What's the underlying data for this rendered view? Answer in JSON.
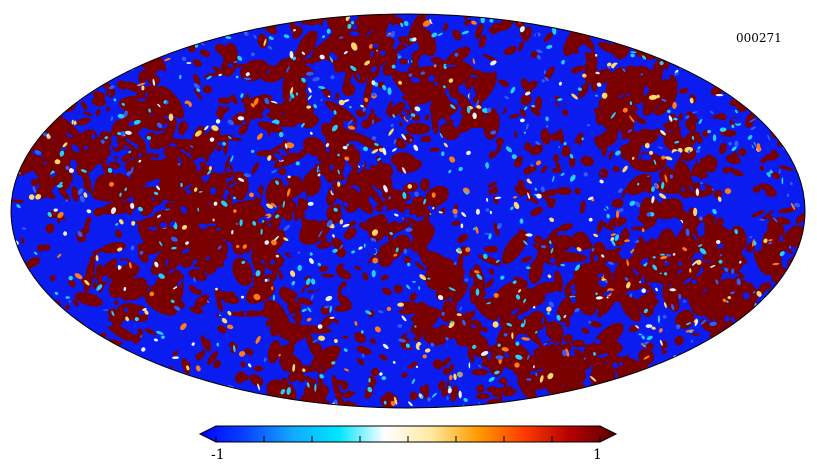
{
  "map": {
    "identifier": "000271",
    "projection": "mollweide",
    "colorbar": {
      "min_label": "-1",
      "max_label": "1",
      "extend": "both",
      "tick_count": 9,
      "stops": [
        "#0000ff",
        "#0a44ff",
        "#12a9ff",
        "#00e5ff",
        "#ffffff",
        "#ffe9a0",
        "#ff9d00",
        "#ff3c00",
        "#b40000",
        "#5a0000"
      ]
    },
    "palette": {
      "deep_blue": "#0a1cf0",
      "mid_blue": "#2e5cff",
      "cyan": "#20d0ff",
      "pale": "#e8f4ff",
      "yellow": "#ffd76a",
      "orange": "#ff7a1a",
      "dark_red": "#7a0000"
    }
  }
}
